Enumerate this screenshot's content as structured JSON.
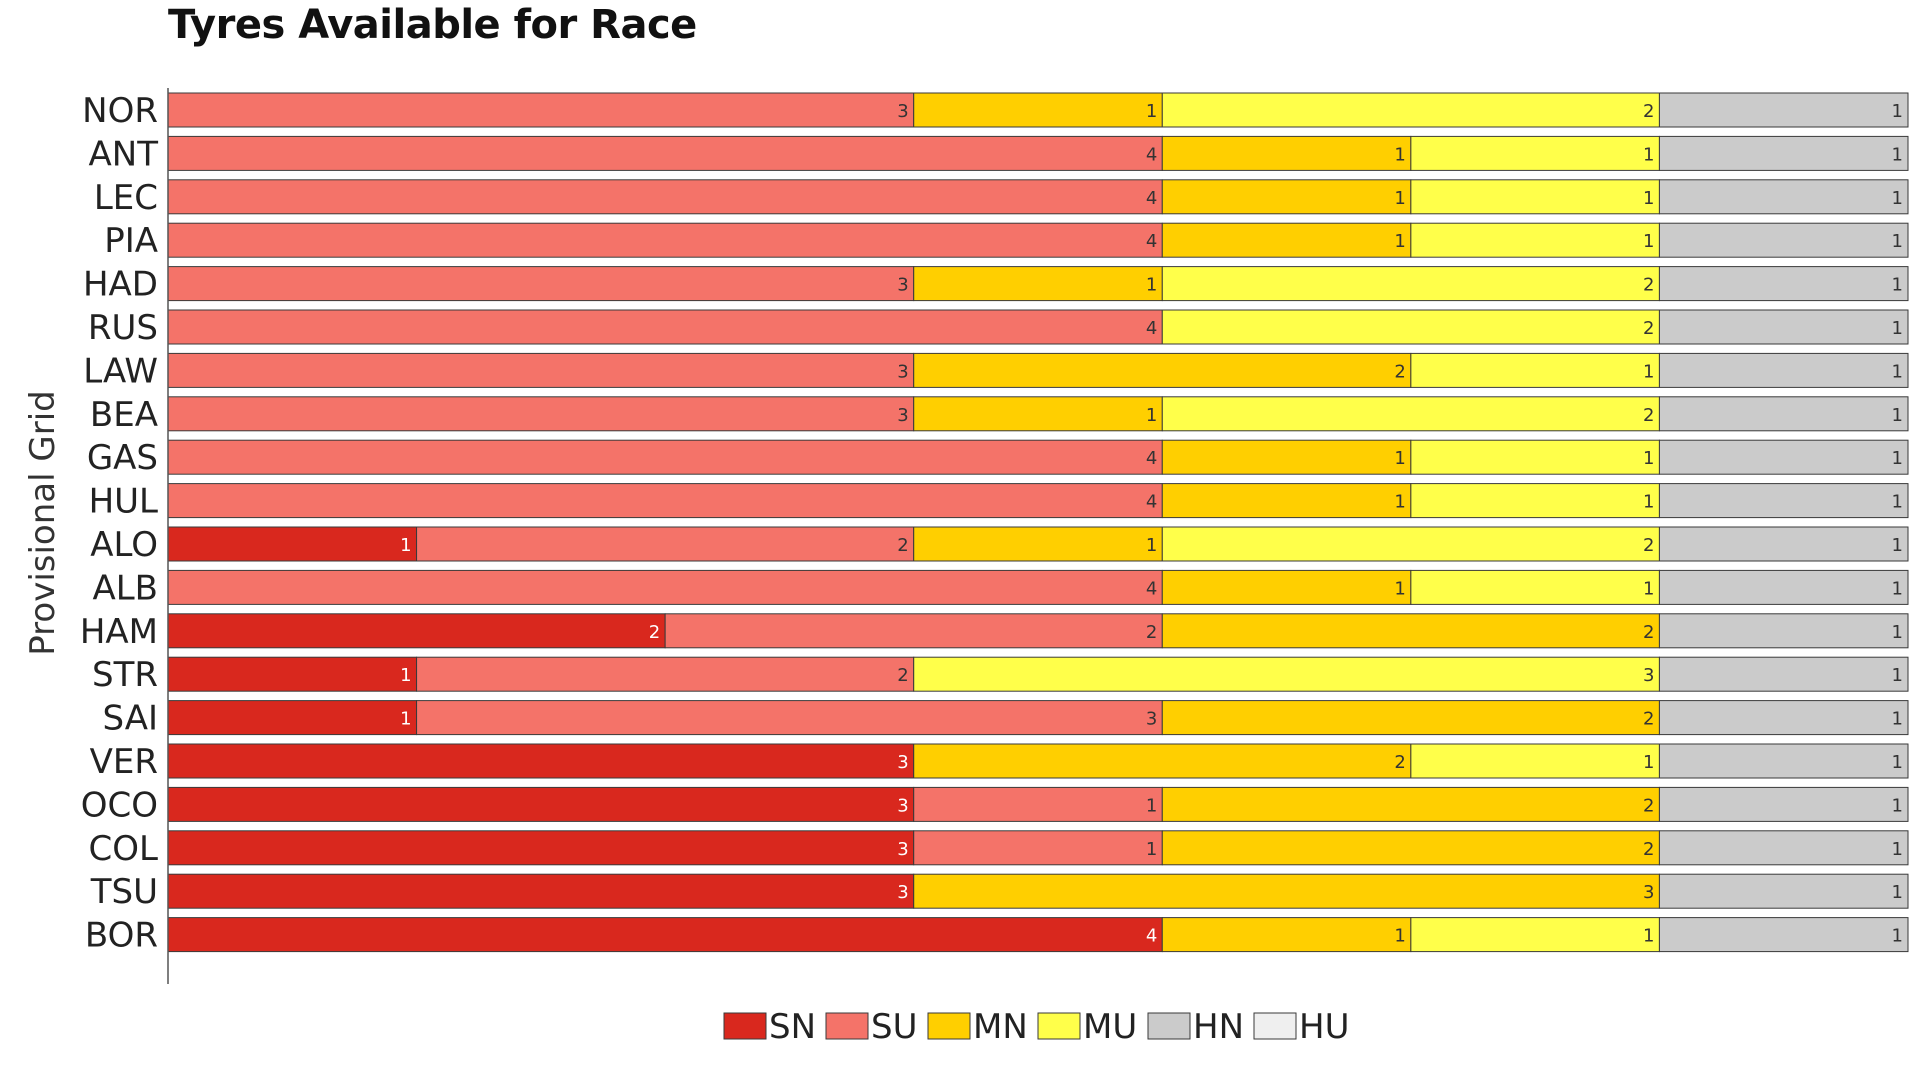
{
  "chart_data": {
    "type": "bar",
    "orientation": "horizontal",
    "stacked": true,
    "title": "Tyres Available for Race",
    "ylabel": "Provisional Grid",
    "xlabel": "",
    "xlim": [
      0,
      7
    ],
    "grid": false,
    "legend": "bottom",
    "categories": [
      "NOR",
      "ANT",
      "LEC",
      "PIA",
      "HAD",
      "RUS",
      "LAW",
      "BEA",
      "GAS",
      "HUL",
      "ALO",
      "ALB",
      "HAM",
      "STR",
      "SAI",
      "VER",
      "OCO",
      "COL",
      "TSU",
      "BOR"
    ],
    "series": [
      {
        "name": "SN",
        "color": "#d9281e",
        "values": [
          0,
          0,
          0,
          0,
          0,
          0,
          0,
          0,
          0,
          0,
          1,
          0,
          2,
          1,
          1,
          3,
          3,
          3,
          3,
          4
        ]
      },
      {
        "name": "SU",
        "color": "#f47369",
        "values": [
          3,
          4,
          4,
          4,
          3,
          4,
          3,
          3,
          4,
          4,
          2,
          4,
          2,
          2,
          3,
          0,
          1,
          1,
          0,
          0
        ]
      },
      {
        "name": "MN",
        "color": "#ffcf00",
        "values": [
          1,
          1,
          1,
          1,
          1,
          0,
          2,
          1,
          1,
          1,
          1,
          1,
          2,
          0,
          2,
          2,
          2,
          2,
          3,
          1
        ]
      },
      {
        "name": "MU",
        "color": "#ffff4a",
        "values": [
          2,
          1,
          1,
          1,
          2,
          2,
          1,
          2,
          1,
          1,
          2,
          1,
          0,
          3,
          0,
          1,
          0,
          0,
          0,
          1
        ]
      },
      {
        "name": "HN",
        "color": "#cbcbcb",
        "values": [
          1,
          1,
          1,
          1,
          1,
          1,
          1,
          1,
          1,
          1,
          1,
          1,
          1,
          1,
          1,
          1,
          1,
          1,
          1,
          1
        ]
      },
      {
        "name": "HU",
        "color": "#efefef",
        "values": [
          0,
          0,
          0,
          0,
          0,
          0,
          0,
          0,
          0,
          0,
          0,
          0,
          0,
          0,
          0,
          0,
          0,
          0,
          0,
          0
        ]
      }
    ]
  }
}
